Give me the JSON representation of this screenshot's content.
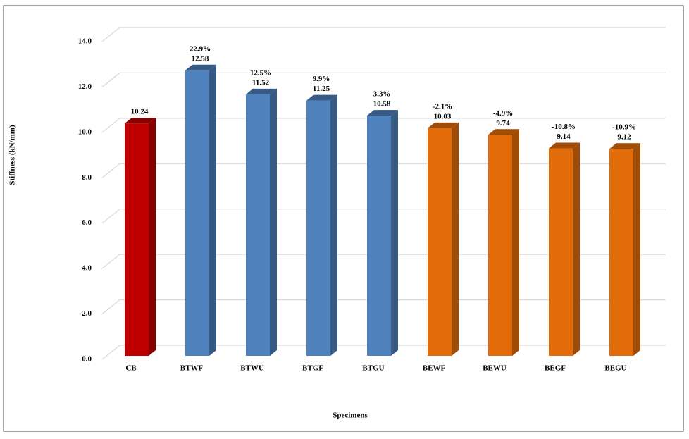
{
  "chart_data": {
    "type": "bar3d",
    "x_label": "Specimens",
    "y_label": "Stiffness (kN/mm)",
    "categories": [
      "CB",
      "BTWF",
      "BTWU",
      "BTGF",
      "BTGU",
      "BEWF",
      "BEWU",
      "BEGF",
      "BEGU"
    ],
    "values": [
      10.24,
      12.58,
      11.52,
      11.25,
      10.58,
      10.03,
      9.74,
      9.14,
      9.12
    ],
    "changes": [
      null,
      "22.9%",
      "12.5%",
      "9.9%",
      "3.3%",
      "-2.1%",
      "-4.9%",
      "-10.8%",
      "-10.9%"
    ],
    "colors": [
      "#c00000",
      "#4f81bd",
      "#4f81bd",
      "#4f81bd",
      "#4f81bd",
      "#e36c0a",
      "#e36c0a",
      "#e36c0a",
      "#e36c0a"
    ],
    "ylim": [
      0,
      14
    ],
    "yticks": [
      {
        "value": 0,
        "label": "0.0"
      },
      {
        "value": 2,
        "label": "2.0"
      },
      {
        "value": 4,
        "label": "4.0"
      },
      {
        "value": 6,
        "label": "6.0"
      },
      {
        "value": 8,
        "label": "8.0"
      },
      {
        "value": 10,
        "label": "10.0"
      },
      {
        "value": 12,
        "label": "12.0"
      },
      {
        "value": 14,
        "label": "14.0"
      }
    ],
    "grid": true
  }
}
